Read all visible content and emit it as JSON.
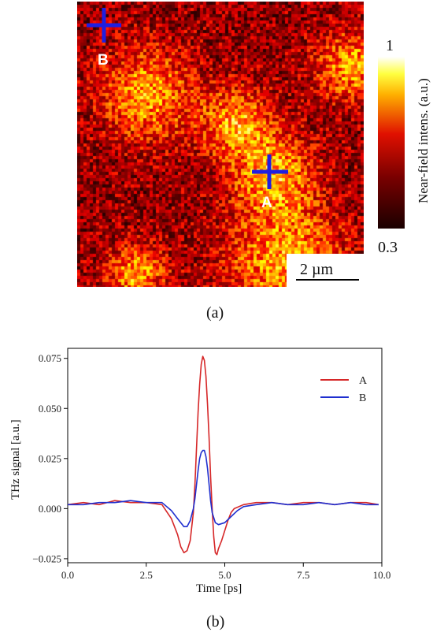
{
  "panel_a": {
    "caption": "(a)",
    "colorbar": {
      "title": "Near-field intens. (a.u.)",
      "max_label": "1",
      "min_label": "0.3",
      "range": [
        0.3,
        1.0
      ],
      "colormap": "hot"
    },
    "scalebar": {
      "label": "2 µm"
    },
    "markers": [
      {
        "label": "A",
        "color": "#1f1fe0"
      },
      {
        "label": "B",
        "color": "#1f1fe0"
      }
    ]
  },
  "panel_b": {
    "caption": "(b)",
    "chart_data": {
      "type": "line",
      "title": "",
      "xlabel": "Time [ps]",
      "ylabel": "THz signal [a.u.]",
      "xlim": [
        0.0,
        10.0
      ],
      "ylim": [
        -0.027,
        0.08
      ],
      "xticks": [
        0.0,
        2.5,
        5.0,
        7.5,
        10.0
      ],
      "xtick_labels": [
        "0.0",
        "2.5",
        "5.0",
        "7.5",
        "10.0"
      ],
      "yticks": [
        -0.025,
        0.0,
        0.025,
        0.05,
        0.075
      ],
      "ytick_labels": [
        "−0.025",
        "0.000",
        "0.025",
        "0.050",
        "0.075"
      ],
      "grid": false,
      "legend": "top-right",
      "series": [
        {
          "name": "A",
          "color": "#d62728",
          "x": [
            0.0,
            0.5,
            1.0,
            1.5,
            2.0,
            2.5,
            3.0,
            3.3,
            3.5,
            3.6,
            3.7,
            3.8,
            3.9,
            4.0,
            4.05,
            4.1,
            4.15,
            4.2,
            4.25,
            4.3,
            4.35,
            4.4,
            4.45,
            4.5,
            4.55,
            4.6,
            4.65,
            4.7,
            4.75,
            4.8,
            4.9,
            5.0,
            5.1,
            5.2,
            5.3,
            5.6,
            6.0,
            6.5,
            7.0,
            7.5,
            8.0,
            8.5,
            9.0,
            9.5,
            9.9
          ],
          "y": [
            0.002,
            0.003,
            0.002,
            0.004,
            0.003,
            0.003,
            0.002,
            -0.005,
            -0.013,
            -0.019,
            -0.022,
            -0.021,
            -0.016,
            -0.002,
            0.012,
            0.03,
            0.048,
            0.062,
            0.072,
            0.076,
            0.074,
            0.066,
            0.052,
            0.035,
            0.016,
            0.0,
            -0.014,
            -0.022,
            -0.023,
            -0.02,
            -0.016,
            -0.011,
            -0.006,
            -0.002,
            0.0,
            0.002,
            0.003,
            0.003,
            0.002,
            0.003,
            0.003,
            0.002,
            0.003,
            0.003,
            0.002
          ]
        },
        {
          "name": "B",
          "color": "#1f2fcf",
          "x": [
            0.0,
            0.5,
            1.0,
            1.5,
            2.0,
            2.5,
            3.0,
            3.3,
            3.5,
            3.7,
            3.8,
            3.9,
            4.0,
            4.05,
            4.1,
            4.15,
            4.2,
            4.25,
            4.3,
            4.35,
            4.4,
            4.45,
            4.5,
            4.55,
            4.6,
            4.7,
            4.8,
            5.0,
            5.2,
            5.4,
            5.6,
            6.0,
            6.5,
            7.0,
            7.5,
            8.0,
            8.5,
            9.0,
            9.5,
            9.9
          ],
          "y": [
            0.002,
            0.002,
            0.003,
            0.003,
            0.004,
            0.003,
            0.003,
            -0.001,
            -0.005,
            -0.009,
            -0.009,
            -0.006,
            0.0,
            0.005,
            0.012,
            0.019,
            0.025,
            0.028,
            0.029,
            0.029,
            0.026,
            0.02,
            0.012,
            0.004,
            -0.002,
            -0.007,
            -0.008,
            -0.007,
            -0.004,
            -0.001,
            0.001,
            0.002,
            0.003,
            0.002,
            0.002,
            0.003,
            0.002,
            0.003,
            0.002,
            0.002
          ]
        }
      ]
    }
  }
}
